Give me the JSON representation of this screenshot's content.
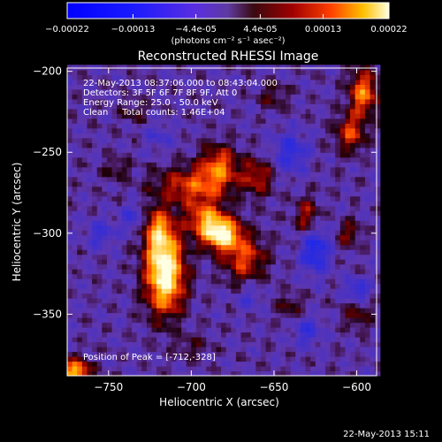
{
  "chart_data": {
    "type": "heatmap",
    "title": "Reconstructed RHESSI Image",
    "xlabel": "Heliocentric X (arcsec)",
    "ylabel": "Heliocentric Y (arcsec)",
    "xlim": [
      -775,
      -588
    ],
    "ylim": [
      -388,
      -198
    ],
    "xticks": [
      -750,
      -700,
      -650,
      -600
    ],
    "yticks": [
      -200,
      -250,
      -300,
      -350
    ],
    "colorbar": {
      "min": -0.00022,
      "max": 0.00022,
      "tick_values": [
        -0.00022,
        -0.00013,
        -4.4e-05,
        4.4e-05,
        0.00013,
        0.00022
      ],
      "tick_labels": [
        "-0.00022",
        "-0.00013",
        "-4.4e-05",
        "4.4e-05",
        "0.00013",
        "0.00022"
      ],
      "unit_label": "(photons cm⁻² s⁻¹ asec⁻²)"
    },
    "info_lines": [
      "22-May-2013 08:37:06.000 to 08:43:04.000",
      "Detectors: 3F 5F 6F 7F 8F 9F, Att 0",
      "Energy Range: 25.0 - 50.0 keV",
      "Clean     Total counts: 1.46E+04"
    ],
    "peak_label": "Position of Peak = [-712,-328]",
    "peak": {
      "x": -712,
      "y": -328,
      "value": 0.00022
    },
    "sources": [
      {
        "x": -716,
        "y": -324,
        "amp": 0.00024,
        "sx": 8,
        "sy": 17
      },
      {
        "x": -720,
        "y": -298,
        "amp": 0.00012,
        "sx": 6,
        "sy": 10
      },
      {
        "x": -682,
        "y": -300,
        "amp": 0.00021,
        "sx": 8,
        "sy": 7
      },
      {
        "x": -692,
        "y": -290,
        "amp": 0.00012,
        "sx": 8,
        "sy": 8
      },
      {
        "x": -668,
        "y": -315,
        "amp": 0.00011,
        "sx": 9,
        "sy": 10
      },
      {
        "x": -700,
        "y": -270,
        "amp": 0.00011,
        "sx": 15,
        "sy": 8
      },
      {
        "x": -683,
        "y": -258,
        "amp": 0.00012,
        "sx": 8,
        "sy": 9
      },
      {
        "x": -660,
        "y": -265,
        "amp": 9e-05,
        "sx": 7,
        "sy": 8
      },
      {
        "x": -596,
        "y": -213,
        "amp": 0.00014,
        "sx": 6,
        "sy": 10
      },
      {
        "x": -604,
        "y": -238,
        "amp": 0.00011,
        "sx": 6,
        "sy": 8
      },
      {
        "x": -630,
        "y": -290,
        "amp": 9e-05,
        "sx": 5,
        "sy": 8
      },
      {
        "x": -605,
        "y": -300,
        "amp": 7e-05,
        "sx": 5,
        "sy": 6
      },
      {
        "x": -770,
        "y": -385,
        "amp": 0.00018,
        "sx": 6,
        "sy": 5
      },
      {
        "x": -600,
        "y": -350,
        "amp": 6e-05,
        "sx": 6,
        "sy": 6
      },
      {
        "x": -640,
        "y": -345,
        "amp": 5e-05,
        "sx": 6,
        "sy": 6
      },
      {
        "x": -745,
        "y": -260,
        "amp": 5e-05,
        "sx": 5,
        "sy": 5
      },
      {
        "x": -735,
        "y": -225,
        "amp": 4e-05,
        "sx": 6,
        "sy": 5
      },
      {
        "x": -650,
        "y": -215,
        "amp": 5e-05,
        "sx": 6,
        "sy": 6
      },
      {
        "x": -700,
        "y": -370,
        "amp": 4e-05,
        "sx": 7,
        "sy": 5
      }
    ],
    "negatives": [
      {
        "x": -625,
        "y": -310,
        "amp": 0.00011,
        "sx": 6,
        "sy": 10
      },
      {
        "x": -640,
        "y": -250,
        "amp": 8e-05,
        "sx": 7,
        "sy": 9
      },
      {
        "x": -630,
        "y": -360,
        "amp": 7e-05,
        "sx": 6,
        "sy": 6
      },
      {
        "x": -600,
        "y": -335,
        "amp": 8e-05,
        "sx": 5,
        "sy": 5
      },
      {
        "x": -735,
        "y": -290,
        "amp": 6e-05,
        "sx": 5,
        "sy": 6
      },
      {
        "x": -755,
        "y": -300,
        "amp": 6e-05,
        "sx": 6,
        "sy": 6
      },
      {
        "x": -665,
        "y": -340,
        "amp": 5e-05,
        "sx": 5,
        "sy": 5
      },
      {
        "x": -720,
        "y": -240,
        "amp": 4e-05,
        "sx": 6,
        "sy": 6
      }
    ]
  },
  "footer": {
    "timestamp": "22-May-2013 15:11"
  },
  "colors": {
    "background": "#000000",
    "axes": "#ffffff",
    "text": "#ffffff"
  }
}
